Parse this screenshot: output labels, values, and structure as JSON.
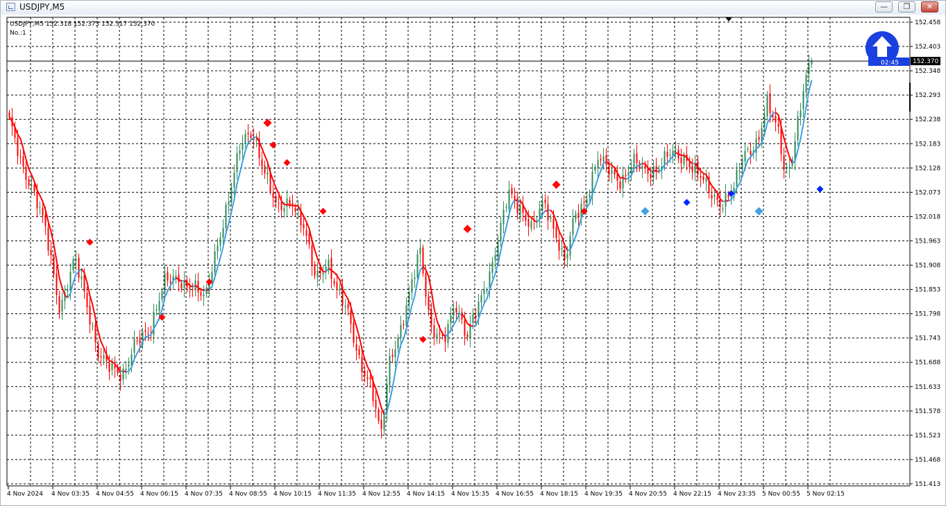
{
  "window": {
    "title": "USDJPY,M5",
    "buttons": {
      "minimize": "—",
      "restore": "❐",
      "close": "✕"
    }
  },
  "chart_header": {
    "symbol_line": "USDJPY,M5  152.318 152.373 152.317 152.370",
    "indicator_line": "No.:1"
  },
  "timer": {
    "text": "02:45",
    "icon": "up-arrow-icon"
  },
  "colors": {
    "up_candle": "#2e8b57",
    "down_candle": "#ff0000",
    "ma_rising": "#3d9ee6",
    "ma_falling": "#ff0000",
    "grid": "#000000",
    "price_label_bg": "#000000",
    "timer_badge": "#1a40e0"
  },
  "chart_data": {
    "type": "candlestick",
    "symbol": "USDJPY",
    "timeframe": "M5",
    "ylim": [
      151.413,
      152.458
    ],
    "y_ticks": [
      "152.458",
      "152.403",
      "152.348",
      "152.293",
      "152.238",
      "152.183",
      "152.128",
      "152.073",
      "152.018",
      "151.963",
      "151.908",
      "151.853",
      "151.798",
      "151.743",
      "151.688",
      "151.633",
      "151.578",
      "151.523",
      "151.468",
      "151.413"
    ],
    "x_ticks": [
      "4 Nov 2024",
      "4 Nov 03:35",
      "4 Nov 04:55",
      "4 Nov 06:15",
      "4 Nov 07:35",
      "4 Nov 08:55",
      "4 Nov 10:15",
      "4 Nov 11:35",
      "4 Nov 12:55",
      "4 Nov 14:15",
      "4 Nov 15:35",
      "4 Nov 16:55",
      "4 Nov 18:15",
      "4 Nov 19:35",
      "4 Nov 20:55",
      "4 Nov 22:15",
      "4 Nov 23:35",
      "5 Nov 00:55",
      "5 Nov 02:15"
    ],
    "bars_per_tick": 16,
    "bar_count": 290,
    "current_price": "152.370",
    "close_path": [
      [
        0,
        152.23
      ],
      [
        8,
        152.14
      ],
      [
        16,
        152.08
      ],
      [
        24,
        151.99
      ],
      [
        34,
        151.81
      ],
      [
        44,
        151.92
      ],
      [
        50,
        151.85
      ],
      [
        60,
        151.71
      ],
      [
        68,
        151.67
      ],
      [
        76,
        151.66
      ],
      [
        84,
        151.73
      ],
      [
        94,
        151.75
      ],
      [
        104,
        151.88
      ],
      [
        118,
        151.86
      ],
      [
        124,
        151.87
      ],
      [
        132,
        151.83
      ],
      [
        140,
        151.95
      ],
      [
        150,
        152.1
      ],
      [
        156,
        152.18
      ],
      [
        164,
        152.21
      ],
      [
        172,
        152.12
      ],
      [
        180,
        152.03
      ],
      [
        190,
        152.06
      ],
      [
        198,
        151.99
      ],
      [
        206,
        151.88
      ],
      [
        214,
        151.92
      ],
      [
        220,
        151.85
      ],
      [
        228,
        151.8
      ],
      [
        236,
        151.69
      ],
      [
        244,
        151.62
      ],
      [
        250,
        151.52
      ],
      [
        256,
        151.7
      ],
      [
        264,
        151.76
      ],
      [
        272,
        151.88
      ],
      [
        276,
        151.96
      ],
      [
        284,
        151.76
      ],
      [
        292,
        151.73
      ],
      [
        300,
        151.83
      ],
      [
        308,
        151.74
      ],
      [
        316,
        151.82
      ],
      [
        324,
        151.9
      ],
      [
        330,
        151.98
      ],
      [
        336,
        152.07
      ],
      [
        344,
        152.04
      ],
      [
        352,
        151.99
      ],
      [
        360,
        152.05
      ],
      [
        368,
        151.98
      ],
      [
        374,
        151.91
      ],
      [
        380,
        152.01
      ],
      [
        388,
        152.06
      ],
      [
        396,
        152.15
      ],
      [
        404,
        152.12
      ],
      [
        412,
        152.1
      ],
      [
        420,
        152.14
      ],
      [
        428,
        152.12
      ],
      [
        436,
        152.13
      ],
      [
        446,
        152.16
      ],
      [
        456,
        152.15
      ],
      [
        464,
        152.11
      ],
      [
        472,
        152.07
      ],
      [
        480,
        152.05
      ],
      [
        488,
        152.08
      ],
      [
        494,
        152.16
      ],
      [
        504,
        152.19
      ],
      [
        510,
        152.27
      ],
      [
        518,
        152.21
      ],
      [
        522,
        152.12
      ],
      [
        526,
        152.14
      ],
      [
        530,
        152.21
      ],
      [
        536,
        152.33
      ],
      [
        540,
        152.37
      ]
    ],
    "signals": [
      {
        "bar": 29,
        "price": 151.96,
        "color": "#ff0000",
        "shape": "diamond"
      },
      {
        "bar": 55,
        "price": 151.79,
        "color": "#ff0000",
        "shape": "diamond"
      },
      {
        "bar": 72,
        "price": 151.87,
        "color": "#ff0000",
        "shape": "diamond"
      },
      {
        "bar": 93,
        "price": 152.23,
        "color": "#ff0000",
        "shape": "cluster"
      },
      {
        "bar": 95,
        "price": 152.18,
        "color": "#ff0000",
        "shape": "diamond"
      },
      {
        "bar": 100,
        "price": 152.14,
        "color": "#ff0000",
        "shape": "diamond"
      },
      {
        "bar": 113,
        "price": 152.03,
        "color": "#ff0000",
        "shape": "diamond"
      },
      {
        "bar": 149,
        "price": 151.74,
        "color": "#ff0000",
        "shape": "diamond"
      },
      {
        "bar": 165,
        "price": 151.99,
        "color": "#ff0000",
        "shape": "cluster"
      },
      {
        "bar": 197,
        "price": 152.09,
        "color": "#ff0000",
        "shape": "cluster"
      },
      {
        "bar": 207,
        "price": 152.03,
        "color": "#ff0000",
        "shape": "diamond"
      },
      {
        "bar": 229,
        "price": 152.03,
        "color": "#3d9ee6",
        "shape": "cluster"
      },
      {
        "bar": 244,
        "price": 152.05,
        "color": "#0026ff",
        "shape": "diamond"
      },
      {
        "bar": 260,
        "price": 152.07,
        "color": "#0026ff",
        "shape": "diamond"
      },
      {
        "bar": 270,
        "price": 152.03,
        "color": "#3d9ee6",
        "shape": "cluster"
      },
      {
        "bar": 292,
        "price": 152.08,
        "color": "#0026ff",
        "shape": "diamond"
      }
    ]
  }
}
